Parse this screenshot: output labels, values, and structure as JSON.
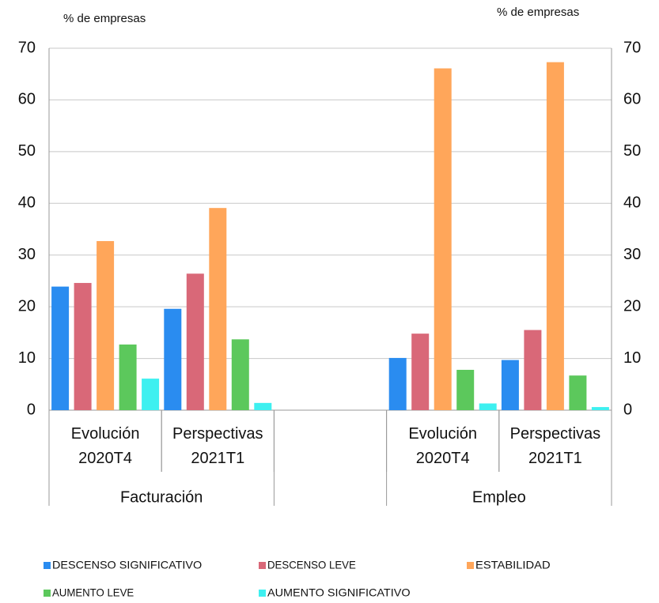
{
  "chart_data": {
    "type": "bar",
    "y_label": "% de empresas",
    "y2_label": "% de empresas",
    "groups": [
      "Facturación",
      "Empleo"
    ],
    "categories": [
      "Evolución 2020T4",
      "Perspectivas 2021T1",
      "Evolución 2020T4",
      "Perspectivas 2021T1"
    ],
    "series": [
      {
        "name": "DESCENSO SIGNIFICATIVO",
        "color": "#2a8cf0",
        "values": [
          23.9,
          19.6,
          10.1,
          9.7
        ]
      },
      {
        "name": "DESCENSO LEVE",
        "color": "#d96878",
        "values": [
          24.6,
          26.4,
          14.8,
          15.5
        ]
      },
      {
        "name": "ESTABILIDAD",
        "color": "#ffa65a",
        "values": [
          32.7,
          39.1,
          66.1,
          67.3
        ]
      },
      {
        "name": "AUMENTO LEVE",
        "color": "#5cc85c",
        "values": [
          12.7,
          13.7,
          7.8,
          6.7
        ]
      },
      {
        "name": "AUMENTO SIGNIFICATIVO",
        "color": "#3ef0f0",
        "values": [
          6.1,
          1.4,
          1.3,
          0.6
        ]
      }
    ],
    "ylim": [
      0,
      70
    ],
    "yticks": [
      0,
      10,
      20,
      30,
      40,
      50,
      60,
      70
    ],
    "y2lim": [
      0,
      70
    ],
    "y2ticks": [
      0,
      10,
      20,
      30,
      40,
      50,
      60,
      70
    ],
    "grid": true
  }
}
